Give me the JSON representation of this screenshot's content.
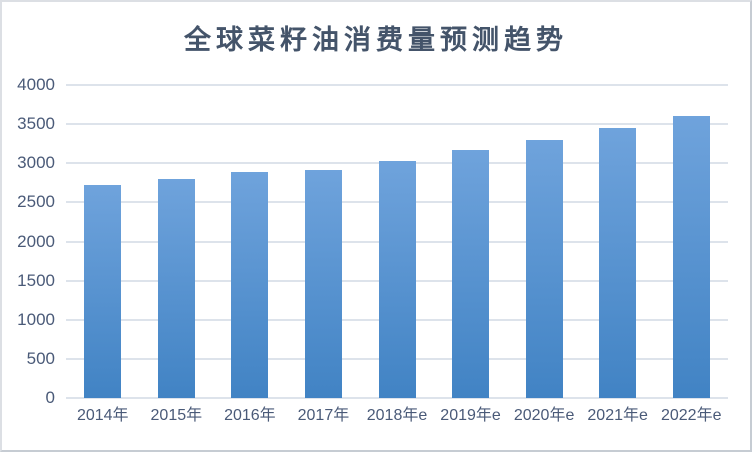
{
  "chart_data": {
    "type": "bar",
    "title": "全球菜籽油消费量预测趋势",
    "categories": [
      "2014年",
      "2015年",
      "2016年",
      "2017年",
      "2018年e",
      "2019年e",
      "2020年e",
      "2021年e",
      "2022年e"
    ],
    "values": [
      2720,
      2800,
      2890,
      2910,
      3030,
      3170,
      3300,
      3450,
      3600
    ],
    "xlabel": "",
    "ylabel": "",
    "ylim": [
      0,
      4000
    ],
    "ytick_interval": 500,
    "ytick_labels": [
      "0",
      "500",
      "1000",
      "1500",
      "2000",
      "2500",
      "3000",
      "3500",
      "4000"
    ],
    "grid": true,
    "legend_position": "none"
  },
  "style": {
    "background": "#ffffff",
    "title_color": "#44546a",
    "axis_text_color": "#4a5a78",
    "gridline_color": "#dde3eb",
    "bar_gradient_top": "#6fa3dc",
    "bar_gradient_bottom": "#4183c4"
  }
}
